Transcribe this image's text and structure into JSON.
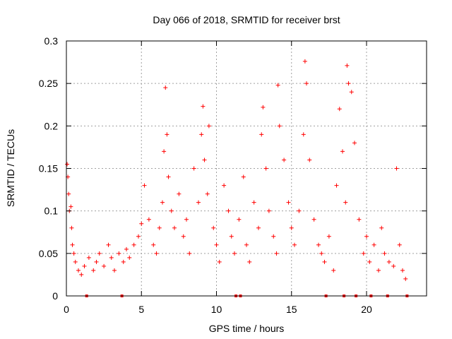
{
  "chart_data": {
    "type": "scatter",
    "title": "Day 066 of 2018, SRMTID for receiver brst",
    "xlabel": "GPS time / hours",
    "ylabel": "SRMTID / TECUs",
    "xlim": [
      0,
      24
    ],
    "ylim": [
      0,
      0.3
    ],
    "x_ticks": [
      0,
      5,
      10,
      15,
      20
    ],
    "x_tick_labels": [
      "0",
      "5",
      "10",
      "15",
      "20"
    ],
    "y_ticks": [
      0,
      0.05,
      0.1,
      0.15,
      0.2,
      0.25,
      0.3
    ],
    "y_tick_labels": [
      "0",
      "0.05",
      "0.1",
      "0.15",
      "0.2",
      "0.25",
      "0.3"
    ],
    "grid": true,
    "legend": "none",
    "marker": "+",
    "color": "#ff0000",
    "series": [
      {
        "name": "SRMTID",
        "x": [
          0.05,
          0.1,
          0.15,
          0.2,
          0.3,
          0.35,
          0.4,
          0.5,
          0.6,
          0.8,
          1.0,
          1.2,
          1.5,
          1.8,
          2.0,
          2.2,
          2.5,
          2.8,
          3.0,
          3.2,
          3.5,
          3.8,
          4.0,
          4.2,
          4.5,
          4.8,
          5.0,
          5.2,
          5.5,
          5.8,
          6.0,
          6.2,
          6.4,
          6.5,
          6.6,
          6.7,
          6.8,
          7.0,
          7.2,
          7.5,
          7.8,
          8.0,
          8.2,
          8.5,
          8.8,
          9.0,
          9.1,
          9.2,
          9.4,
          9.5,
          9.8,
          10.0,
          10.2,
          10.5,
          10.8,
          11.0,
          11.2,
          11.5,
          11.8,
          12.0,
          12.2,
          12.5,
          12.8,
          13.0,
          13.1,
          13.3,
          13.5,
          13.8,
          14.0,
          14.1,
          14.2,
          14.5,
          14.8,
          15.0,
          15.2,
          15.5,
          15.8,
          15.9,
          16.0,
          16.2,
          16.5,
          16.8,
          17.0,
          17.2,
          17.5,
          17.8,
          18.0,
          18.2,
          18.4,
          18.6,
          18.7,
          18.8,
          19.0,
          19.2,
          19.5,
          19.8,
          20.0,
          20.2,
          20.5,
          20.8,
          21.0,
          21.2,
          21.5,
          21.8,
          22.0,
          22.2,
          22.4,
          22.6
        ],
        "y": [
          0.155,
          0.14,
          0.12,
          0.1,
          0.105,
          0.08,
          0.06,
          0.05,
          0.04,
          0.03,
          0.025,
          0.035,
          0.045,
          0.03,
          0.04,
          0.05,
          0.035,
          0.06,
          0.045,
          0.03,
          0.05,
          0.04,
          0.055,
          0.045,
          0.06,
          0.07,
          0.085,
          0.13,
          0.09,
          0.06,
          0.05,
          0.08,
          0.11,
          0.17,
          0.245,
          0.19,
          0.14,
          0.1,
          0.08,
          0.12,
          0.07,
          0.09,
          0.05,
          0.15,
          0.11,
          0.19,
          0.223,
          0.16,
          0.12,
          0.2,
          0.08,
          0.06,
          0.04,
          0.13,
          0.1,
          0.07,
          0.05,
          0.09,
          0.14,
          0.06,
          0.04,
          0.11,
          0.08,
          0.19,
          0.222,
          0.15,
          0.1,
          0.07,
          0.05,
          0.248,
          0.2,
          0.16,
          0.11,
          0.08,
          0.06,
          0.1,
          0.19,
          0.276,
          0.25,
          0.16,
          0.09,
          0.06,
          0.05,
          0.04,
          0.07,
          0.03,
          0.13,
          0.22,
          0.17,
          0.11,
          0.271,
          0.25,
          0.24,
          0.18,
          0.09,
          0.05,
          0.07,
          0.04,
          0.06,
          0.03,
          0.08,
          0.05,
          0.04,
          0.035,
          0.15,
          0.06,
          0.03,
          0.02
        ]
      }
    ],
    "data_gaps_x": [
      1.35,
      3.7,
      11.3,
      11.6,
      17.3,
      18.5,
      19.3,
      20.3,
      21.4,
      22.7
    ]
  }
}
